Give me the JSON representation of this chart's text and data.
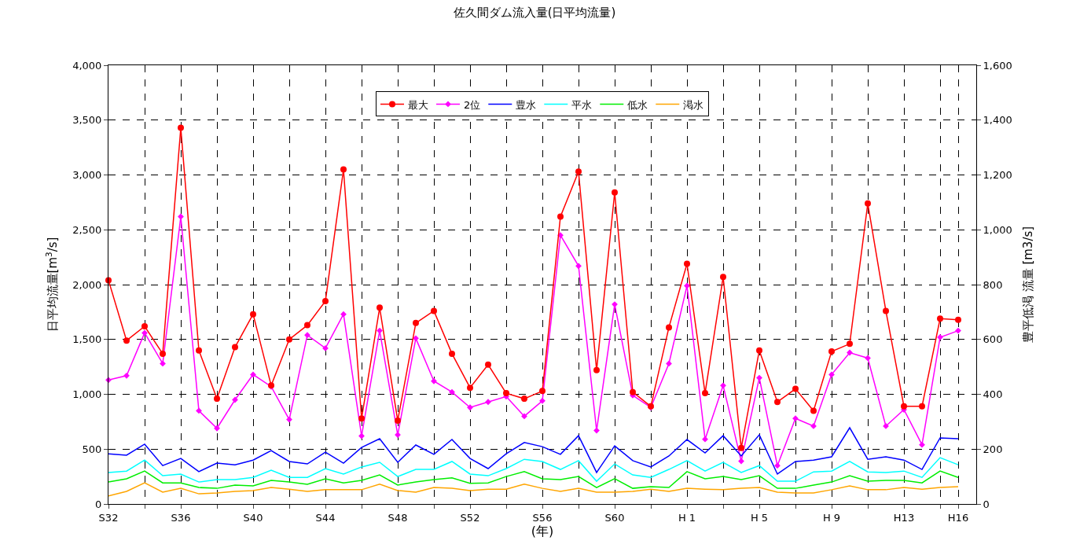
{
  "chart_data": {
    "type": "line",
    "title": "佐久間ダム流入量(日平均流量)",
    "xlabel": "(年)",
    "ylabel": "日平均流量[m$^{3}$/s]",
    "y2label": "豊平低渇 流量 [m3/s]",
    "categories": [
      "S32",
      null,
      null,
      null,
      "S36",
      null,
      null,
      null,
      "S40",
      null,
      null,
      null,
      "S44",
      null,
      null,
      null,
      "S48",
      null,
      null,
      null,
      "S52",
      null,
      null,
      null,
      "S56",
      null,
      null,
      null,
      "S60",
      null,
      null,
      null,
      "H 1",
      null,
      null,
      null,
      "H 5",
      null,
      null,
      null,
      "H 9",
      null,
      null,
      null,
      "H13",
      null,
      null,
      "H16"
    ],
    "series": [
      {
        "name": "最大",
        "color": "#ff0000",
        "marker": "circle",
        "values": [
          2040,
          1490,
          1620,
          1370,
          3430,
          1400,
          960,
          1430,
          1730,
          1080,
          1500,
          1630,
          1850,
          3050,
          780,
          1790,
          760,
          1650,
          1760,
          1370,
          1060,
          1270,
          1010,
          960,
          1030,
          2620,
          3030,
          1220,
          2840,
          1020,
          890,
          1610,
          2190,
          1010,
          2070,
          510,
          1400,
          930,
          1050,
          850,
          1390,
          1460,
          2740,
          1760,
          890,
          890,
          1690,
          1680
        ]
      },
      {
        "name": "2位",
        "color": "#ff00ff",
        "marker": "diamond",
        "values": [
          1130,
          1170,
          1560,
          1280,
          2620,
          850,
          690,
          950,
          1180,
          1070,
          770,
          1540,
          1420,
          1730,
          620,
          1580,
          630,
          1510,
          1120,
          1020,
          880,
          930,
          980,
          800,
          940,
          2450,
          2170,
          670,
          1820,
          990,
          880,
          1280,
          1990,
          590,
          1080,
          390,
          1150,
          350,
          780,
          710,
          1180,
          1380,
          1330,
          710,
          860,
          540,
          1520,
          1580
        ]
      },
      {
        "name": "豊水",
        "color": "#0000ff",
        "marker": "none",
        "axis": "y2",
        "values": [
          183,
          178,
          218,
          140,
          166,
          118,
          149,
          143,
          160,
          195,
          155,
          146,
          189,
          149,
          206,
          238,
          152,
          215,
          181,
          235,
          166,
          129,
          183,
          224,
          209,
          181,
          249,
          115,
          212,
          158,
          135,
          175,
          235,
          186,
          249,
          175,
          252,
          109,
          155,
          160,
          172,
          278,
          163,
          172,
          160,
          126,
          241,
          238
        ]
      },
      {
        "name": "平水",
        "color": "#00ffff",
        "marker": "none",
        "axis": "y2",
        "values": [
          115,
          120,
          160,
          103,
          109,
          80,
          89,
          89,
          97,
          123,
          97,
          97,
          129,
          109,
          135,
          152,
          100,
          126,
          126,
          155,
          109,
          103,
          129,
          163,
          155,
          126,
          158,
          83,
          146,
          106,
          97,
          126,
          158,
          120,
          152,
          115,
          140,
          83,
          83,
          117,
          120,
          155,
          117,
          115,
          120,
          97,
          169,
          143
        ]
      },
      {
        "name": "低水",
        "color": "#00ee00",
        "marker": "none",
        "axis": "y2",
        "values": [
          80,
          92,
          120,
          77,
          77,
          60,
          57,
          69,
          66,
          86,
          80,
          72,
          92,
          77,
          86,
          106,
          69,
          80,
          89,
          95,
          75,
          77,
          100,
          118,
          92,
          89,
          100,
          60,
          92,
          57,
          63,
          60,
          118,
          92,
          100,
          89,
          103,
          57,
          57,
          69,
          80,
          103,
          83,
          86,
          86,
          77,
          120,
          97
        ]
      },
      {
        "name": "渇水",
        "color": "#ffa500",
        "marker": "none",
        "axis": "y2",
        "values": [
          29,
          46,
          77,
          43,
          57,
          37,
          40,
          46,
          49,
          60,
          54,
          46,
          52,
          52,
          52,
          72,
          49,
          43,
          60,
          57,
          49,
          54,
          54,
          72,
          57,
          46,
          57,
          43,
          43,
          46,
          54,
          46,
          57,
          54,
          52,
          57,
          60,
          43,
          40,
          40,
          52,
          66,
          52,
          52,
          60,
          54,
          60,
          63
        ]
      }
    ],
    "ylim": [
      0,
      4000
    ],
    "yticks": [
      0,
      {
        "value": 500,
        "label": "500"
      },
      {
        "value": 1000,
        "label": "1,000"
      },
      {
        "value": 1500,
        "label": "1,500"
      },
      {
        "value": 2000,
        "label": "2,000"
      },
      {
        "value": 2500,
        "label": "2,500"
      },
      {
        "value": 3000,
        "label": "3,000"
      },
      {
        "value": 3500,
        "label": "3,500"
      },
      {
        "value": 4000,
        "label": "4,000"
      }
    ],
    "y2lim": [
      0,
      1600
    ],
    "y2ticks": [
      0,
      200,
      400,
      600,
      800,
      {
        "value": 1000,
        "label": "1,000"
      },
      {
        "value": 1200,
        "label": "1,200"
      },
      {
        "value": 1400,
        "label": "1,400"
      },
      {
        "value": 1600,
        "label": "1,600"
      }
    ],
    "grid": true,
    "legend": "top",
    "line_style": "solid"
  }
}
